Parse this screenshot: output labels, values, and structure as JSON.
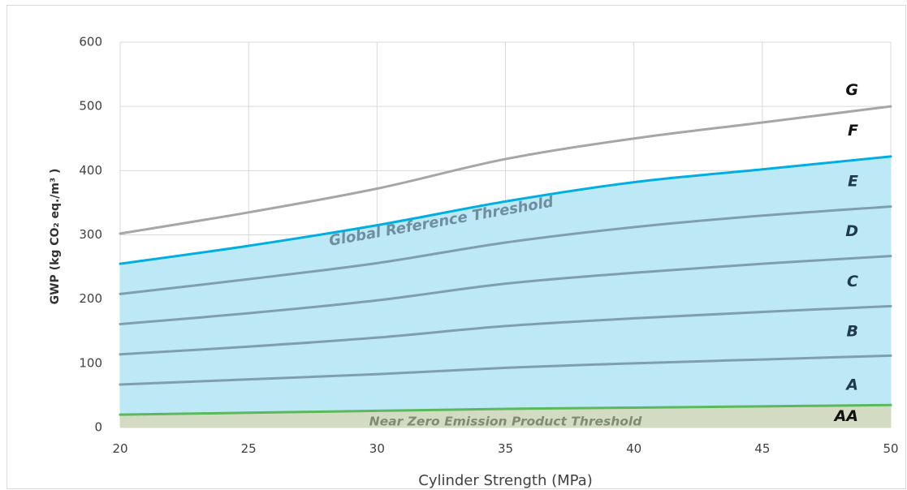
{
  "chart_data": {
    "type": "line",
    "xlabel": "Cylinder Strength (MPa)",
    "ylabel": "GWP (kg CO₂ eq./m³ )",
    "xlim": [
      20,
      50
    ],
    "ylim": [
      0,
      600
    ],
    "x_ticks": [
      "20",
      "25",
      "30",
      "35",
      "40",
      "45",
      "50"
    ],
    "y_ticks": [
      "0",
      "100",
      "200",
      "300",
      "400",
      "500",
      "600"
    ],
    "grid": true,
    "colors": {
      "grid": "#d9d9d9",
      "global_line": "#00aee6",
      "global_fill": "#bde8f6",
      "near_zero_line": "#5cb85c",
      "near_zero_fill": "#d3dcc3",
      "band_line": "#7f9fae",
      "upper_line": "#a6a6a6",
      "global_label": "#6e8fa0",
      "near_zero_label": "#7f8c6e"
    },
    "series": [
      {
        "role": "upper",
        "x": [
          20,
          25,
          30,
          35,
          40,
          45,
          50
        ],
        "values": [
          302,
          335,
          372,
          418,
          450,
          475,
          500
        ]
      },
      {
        "role": "global",
        "x": [
          20,
          25,
          30,
          35,
          40,
          45,
          50
        ],
        "values": [
          255,
          283,
          315,
          352,
          382,
          402,
          422
        ]
      },
      {
        "role": "band",
        "x": [
          20,
          25,
          30,
          35,
          40,
          45,
          50
        ],
        "values": [
          208,
          231,
          256,
          288,
          312,
          330,
          344
        ]
      },
      {
        "role": "band",
        "x": [
          20,
          25,
          30,
          35,
          40,
          45,
          50
        ],
        "values": [
          161,
          178,
          198,
          224,
          241,
          255,
          267
        ]
      },
      {
        "role": "band",
        "x": [
          20,
          25,
          30,
          35,
          40,
          45,
          50
        ],
        "values": [
          114,
          126,
          140,
          158,
          170,
          180,
          189
        ]
      },
      {
        "role": "band",
        "x": [
          20,
          25,
          30,
          35,
          40,
          45,
          50
        ],
        "values": [
          67,
          75,
          83,
          93,
          100,
          106,
          112
        ]
      },
      {
        "role": "near_zero",
        "x": [
          20,
          25,
          30,
          35,
          40,
          45,
          50
        ],
        "values": [
          20,
          23,
          26,
          29,
          31,
          33,
          35
        ]
      }
    ],
    "band_labels": [
      {
        "text": "G",
        "y": 525,
        "dark": true
      },
      {
        "text": "F",
        "y": 462,
        "dark": true
      },
      {
        "text": "E",
        "y": 383
      },
      {
        "text": "D",
        "y": 305
      },
      {
        "text": "C",
        "y": 227
      },
      {
        "text": "B",
        "y": 149
      },
      {
        "text": "A",
        "y": 66
      },
      {
        "text": "AA",
        "y": 17,
        "dark": true
      }
    ],
    "annotations": [
      {
        "text": "Global Reference Threshold",
        "x": 32.5,
        "y": 320,
        "angle": -10,
        "size": 18,
        "role": "global"
      },
      {
        "text": "Near Zero Emission Product Threshold",
        "x": 35,
        "y": 9,
        "angle": 0,
        "size": 15.5,
        "role": "near_zero"
      }
    ]
  }
}
